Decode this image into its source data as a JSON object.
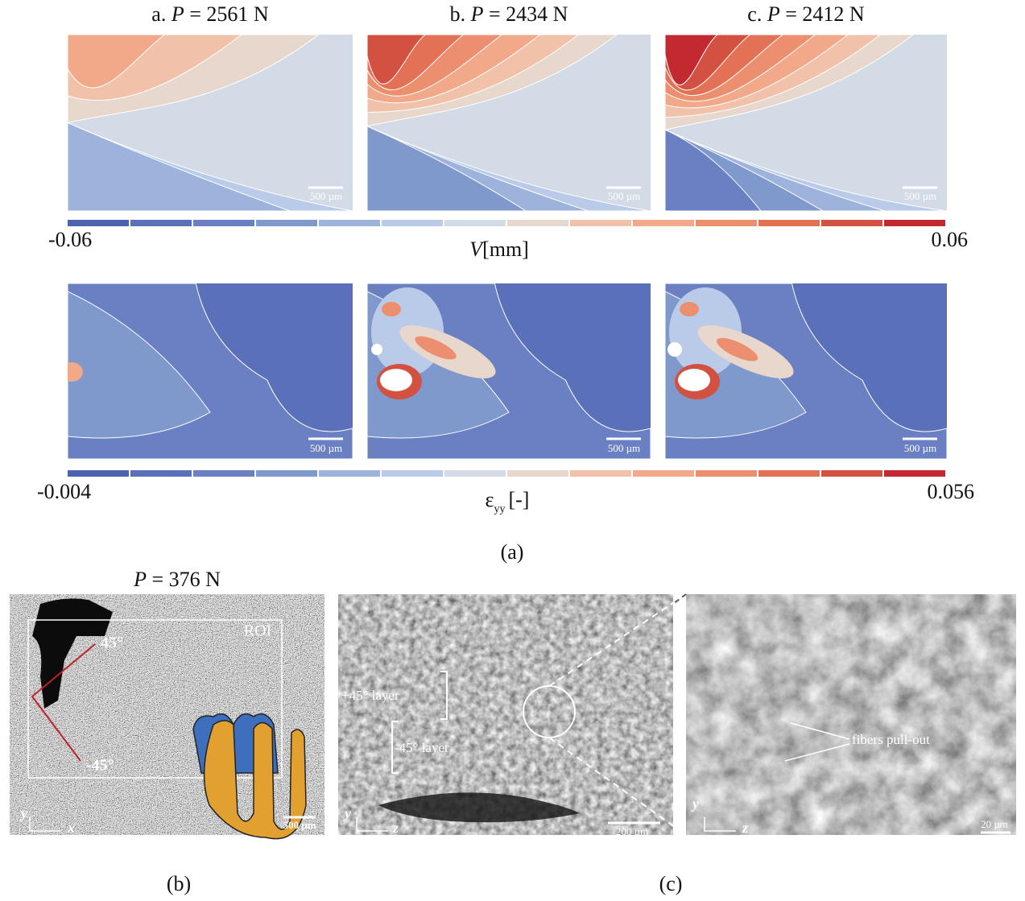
{
  "panel_a": {
    "displacement_maps": [
      {
        "label": "a.",
        "symbol": "P",
        "load": "= 2561 N",
        "scale_bar": "500 µm"
      },
      {
        "label": "b.",
        "symbol": "P",
        "load": "= 2434 N",
        "scale_bar": "500 µm"
      },
      {
        "label": "c.",
        "symbol": "P",
        "load": "= 2412 N",
        "scale_bar": "500 µm"
      }
    ],
    "displacement_colorbar": {
      "min": "-0.06",
      "max": "0.06",
      "symbol": "V",
      "unit": "[mm]"
    },
    "strain_maps": [
      {
        "scale_bar": "500 µm"
      },
      {
        "scale_bar": "500 µm"
      },
      {
        "scale_bar": "500 µm"
      }
    ],
    "strain_colorbar": {
      "min": "-0.004",
      "max": "0.056",
      "symbol": "ε",
      "subscript": "yy",
      "unit": "[-]"
    },
    "caption": "(a)"
  },
  "panel_b": {
    "symbol": "P",
    "load": "= 376 N",
    "roi": "ROI",
    "angle_plus": "45°",
    "angle_minus": "-45°",
    "scale_bar": "500 µm",
    "axis_y": "y",
    "axis_x": "x",
    "caption": "(b)"
  },
  "panel_c": {
    "layer_plus": "+45° layer",
    "layer_minus": "-45° layer",
    "scale_bar_left": "200 µm",
    "axis_y_left": "y",
    "axis_z_left": "z",
    "annotation": "fibers pull-out",
    "scale_bar_right": "20 µm",
    "axis_y_right": "y",
    "axis_z_right": "z",
    "caption": "(c)"
  }
}
